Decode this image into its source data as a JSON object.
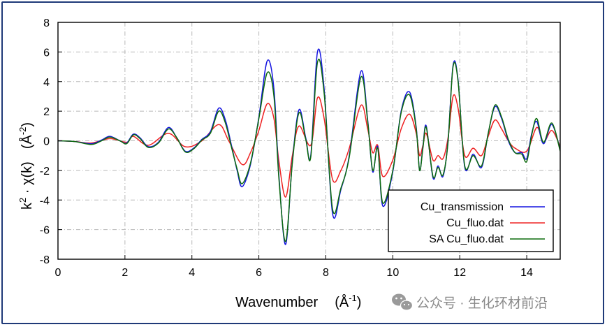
{
  "chart_data": {
    "type": "line",
    "title": "",
    "xlabel": "Wavenumber",
    "xlabel_unit": "(Å",
    "xlabel_unit_sup": "-1",
    "xlabel_unit_close": ")",
    "ylabel": "k",
    "ylabel_sup": "2",
    "ylabel_rest": " · χ(k)",
    "ylabel_unit": "(Å",
    "ylabel_unit_sup": "-2",
    "ylabel_unit_close": ")",
    "xlim": [
      0,
      15
    ],
    "ylim": [
      -8,
      8
    ],
    "x_ticks": [
      "0",
      "2",
      "4",
      "6",
      "8",
      "10",
      "12",
      "14"
    ],
    "y_ticks": [
      "8",
      "6",
      "4",
      "2",
      "0",
      "-2",
      "-4",
      "-6",
      "-8"
    ],
    "grid": true,
    "legend_position": "bottom-right",
    "series": [
      {
        "name": "Cu_transmission",
        "color": "#1515e0",
        "points": [
          [
            0,
            0
          ],
          [
            0.5,
            -0.05
          ],
          [
            1.0,
            -0.2
          ],
          [
            1.3,
            0.05
          ],
          [
            1.55,
            0.3
          ],
          [
            1.85,
            0
          ],
          [
            2.05,
            -0.15
          ],
          [
            2.25,
            0.45
          ],
          [
            2.45,
            0.2
          ],
          [
            2.7,
            -0.4
          ],
          [
            3.0,
            -0.1
          ],
          [
            3.3,
            0.9
          ],
          [
            3.55,
            0.2
          ],
          [
            3.8,
            -0.7
          ],
          [
            4.05,
            -0.5
          ],
          [
            4.3,
            0.1
          ],
          [
            4.55,
            0.6
          ],
          [
            4.8,
            2.2
          ],
          [
            5.0,
            1.4
          ],
          [
            5.2,
            -0.5
          ],
          [
            5.35,
            -2
          ],
          [
            5.5,
            -3.1
          ],
          [
            5.75,
            -1.6
          ],
          [
            6.0,
            1.6
          ],
          [
            6.25,
            5.4
          ],
          [
            6.45,
            3.5
          ],
          [
            6.6,
            -2.4
          ],
          [
            6.8,
            -7
          ],
          [
            7.0,
            -1.4
          ],
          [
            7.2,
            2.1
          ],
          [
            7.4,
            0.2
          ],
          [
            7.55,
            -1
          ],
          [
            7.75,
            6.0
          ],
          [
            7.95,
            3.5
          ],
          [
            8.2,
            -4.9
          ],
          [
            8.45,
            -3.3
          ],
          [
            8.7,
            -1
          ],
          [
            9.05,
            4.7
          ],
          [
            9.25,
            1.4
          ],
          [
            9.4,
            -2.1
          ],
          [
            9.55,
            -0.4
          ],
          [
            9.7,
            -4.4
          ],
          [
            10.0,
            -2.1
          ],
          [
            10.25,
            2
          ],
          [
            10.5,
            3.3
          ],
          [
            10.7,
            0.9
          ],
          [
            10.8,
            -2
          ],
          [
            10.9,
            -0.4
          ],
          [
            11.0,
            1.0
          ],
          [
            11.2,
            -2.5
          ],
          [
            11.35,
            -1.7
          ],
          [
            11.5,
            -2.4
          ],
          [
            11.65,
            0
          ],
          [
            11.8,
            5.1
          ],
          [
            11.95,
            4.1
          ],
          [
            12.15,
            -1.8
          ],
          [
            12.4,
            -0.9
          ],
          [
            12.65,
            -1.8
          ],
          [
            12.85,
            0.5
          ],
          [
            13.05,
            2.3
          ],
          [
            13.25,
            1.5
          ],
          [
            13.45,
            0
          ],
          [
            13.65,
            -0.8
          ],
          [
            13.85,
            -0.8
          ],
          [
            14.0,
            -1.2
          ],
          [
            14.15,
            0.5
          ],
          [
            14.3,
            1.3
          ],
          [
            14.5,
            -0.2
          ],
          [
            14.75,
            1.1
          ],
          [
            15.0,
            -0.6
          ]
        ]
      },
      {
        "name": "Cu_fluo.dat",
        "color": "#ee2222",
        "points": [
          [
            0,
            0
          ],
          [
            0.5,
            -0.05
          ],
          [
            1.0,
            -0.15
          ],
          [
            1.55,
            0.15
          ],
          [
            2.05,
            -0.1
          ],
          [
            2.25,
            0.3
          ],
          [
            2.7,
            -0.3
          ],
          [
            3.3,
            0.5
          ],
          [
            3.8,
            -0.4
          ],
          [
            4.3,
            0
          ],
          [
            4.8,
            1.1
          ],
          [
            5.1,
            0
          ],
          [
            5.5,
            -1.6
          ],
          [
            5.75,
            -0.8
          ],
          [
            6.0,
            0.7
          ],
          [
            6.25,
            2.5
          ],
          [
            6.45,
            1.5
          ],
          [
            6.6,
            -1.4
          ],
          [
            6.8,
            -3.8
          ],
          [
            7.0,
            -1
          ],
          [
            7.2,
            1.0
          ],
          [
            7.55,
            -0.3
          ],
          [
            7.75,
            2.9
          ],
          [
            7.95,
            1.5
          ],
          [
            8.2,
            -2.6
          ],
          [
            8.45,
            -2
          ],
          [
            8.7,
            -0.5
          ],
          [
            9.05,
            2.4
          ],
          [
            9.25,
            0.8
          ],
          [
            9.4,
            -0.8
          ],
          [
            9.55,
            -0.3
          ],
          [
            9.7,
            -2.4
          ],
          [
            10.0,
            -1.3
          ],
          [
            10.25,
            0.8
          ],
          [
            10.5,
            1.8
          ],
          [
            10.7,
            0.5
          ],
          [
            10.8,
            -1.0
          ],
          [
            10.9,
            -0.3
          ],
          [
            11.0,
            0.5
          ],
          [
            11.2,
            -1.3
          ],
          [
            11.35,
            -1.0
          ],
          [
            11.5,
            -1.2
          ],
          [
            11.65,
            0.2
          ],
          [
            11.8,
            3.0
          ],
          [
            11.95,
            2.2
          ],
          [
            12.15,
            -1
          ],
          [
            12.4,
            -0.5
          ],
          [
            12.65,
            -1
          ],
          [
            12.85,
            0.3
          ],
          [
            13.05,
            1.4
          ],
          [
            13.25,
            0.8
          ],
          [
            13.45,
            0
          ],
          [
            13.65,
            -0.5
          ],
          [
            14.0,
            -0.7
          ],
          [
            14.3,
            0.9
          ],
          [
            14.5,
            -0.1
          ],
          [
            14.75,
            0.7
          ],
          [
            15.0,
            -0.4
          ]
        ]
      },
      {
        "name": "SA  Cu_fluo.dat",
        "color": "#0d6b0d",
        "points": [
          [
            0,
            0
          ],
          [
            0.5,
            -0.05
          ],
          [
            1.0,
            -0.25
          ],
          [
            1.3,
            0
          ],
          [
            1.55,
            0.25
          ],
          [
            1.85,
            0
          ],
          [
            2.05,
            -0.2
          ],
          [
            2.25,
            0.4
          ],
          [
            2.45,
            0.15
          ],
          [
            2.7,
            -0.45
          ],
          [
            3.0,
            -0.15
          ],
          [
            3.3,
            0.8
          ],
          [
            3.55,
            0.2
          ],
          [
            3.8,
            -0.75
          ],
          [
            4.05,
            -0.55
          ],
          [
            4.3,
            0.05
          ],
          [
            4.55,
            0.5
          ],
          [
            4.8,
            2.0
          ],
          [
            5.0,
            1.2
          ],
          [
            5.2,
            -0.6
          ],
          [
            5.35,
            -1.9
          ],
          [
            5.5,
            -2.9
          ],
          [
            5.75,
            -1.5
          ],
          [
            6.0,
            1.5
          ],
          [
            6.25,
            4.6
          ],
          [
            6.45,
            3.0
          ],
          [
            6.6,
            -2.6
          ],
          [
            6.8,
            -6.8
          ],
          [
            7.0,
            -1.5
          ],
          [
            7.2,
            1.9
          ],
          [
            7.4,
            0.1
          ],
          [
            7.55,
            -1.1
          ],
          [
            7.75,
            5.3
          ],
          [
            7.95,
            3.2
          ],
          [
            8.2,
            -4.6
          ],
          [
            8.45,
            -3.2
          ],
          [
            8.7,
            -1.1
          ],
          [
            9.05,
            4.3
          ],
          [
            9.25,
            1.3
          ],
          [
            9.4,
            -2.0
          ],
          [
            9.55,
            -0.5
          ],
          [
            9.7,
            -4.2
          ],
          [
            10.0,
            -2.0
          ],
          [
            10.25,
            1.9
          ],
          [
            10.5,
            3.1
          ],
          [
            10.7,
            0.8
          ],
          [
            10.8,
            -2.0
          ],
          [
            10.9,
            -0.5
          ],
          [
            11.0,
            0.9
          ],
          [
            11.2,
            -2.4
          ],
          [
            11.35,
            -1.8
          ],
          [
            11.5,
            -2.3
          ],
          [
            11.65,
            -0.1
          ],
          [
            11.8,
            5.0
          ],
          [
            11.95,
            4.0
          ],
          [
            12.15,
            -1.7
          ],
          [
            12.4,
            -1.0
          ],
          [
            12.65,
            -1.7
          ],
          [
            12.85,
            0.5
          ],
          [
            13.05,
            2.4
          ],
          [
            13.25,
            1.6
          ],
          [
            13.45,
            0.1
          ],
          [
            13.65,
            -0.8
          ],
          [
            13.85,
            -0.9
          ],
          [
            14.0,
            -1.4
          ],
          [
            14.15,
            0.4
          ],
          [
            14.3,
            1.5
          ],
          [
            14.5,
            -0.1
          ],
          [
            14.75,
            1.2
          ],
          [
            15.0,
            -0.7
          ]
        ]
      }
    ]
  },
  "watermark": {
    "text": "公众号 · 生化环材前沿",
    "icon": "wechat-icon"
  }
}
